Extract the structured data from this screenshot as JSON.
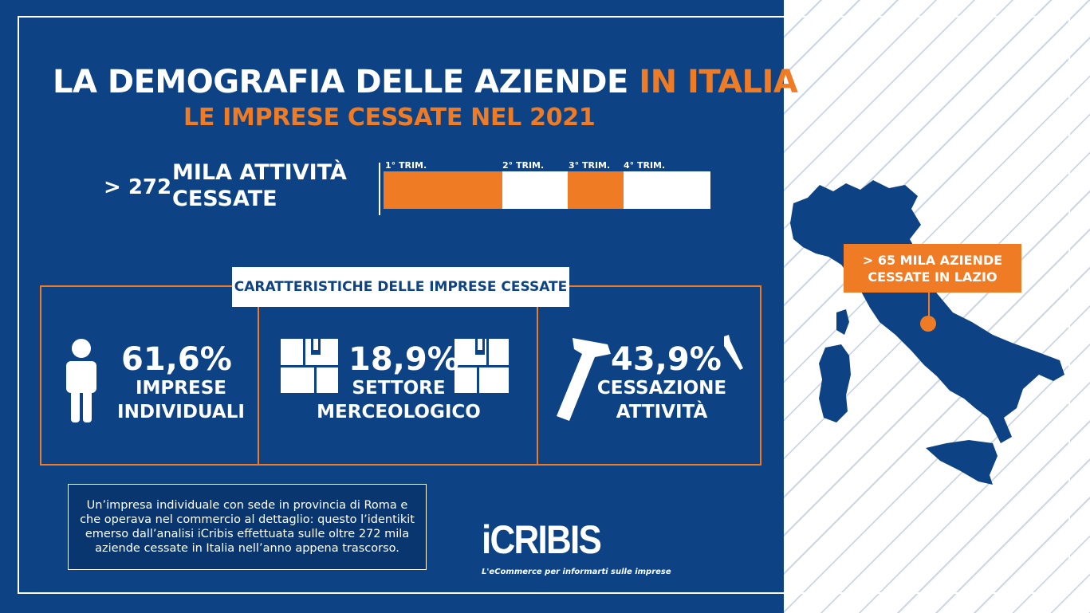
{
  "header": {
    "title_main": "LA DEMOGRAFIA DELLE AZIENDE",
    "title_highlight": "IN ITALIA",
    "subtitle": "LE IMPRESE CESSATE NEL 2021"
  },
  "summary": {
    "prefix": "> 272",
    "text": "MILA ATTIVITÀ CESSATE"
  },
  "quarters": [
    {
      "label": "1° TRIM.",
      "color": "#f07b25"
    },
    {
      "label": "2° TRIM.",
      "color": "#ffffff"
    },
    {
      "label": "3° TRIM.",
      "color": "#f07b25"
    },
    {
      "label": "4° TRIM.",
      "color": "#ffffff"
    }
  ],
  "characteristics": {
    "heading": "CARATTERISTICHE DELLE IMPRESE CESSATE",
    "items": [
      {
        "icon": "person-icon",
        "value": "61,6%",
        "line1": "IMPRESE",
        "line2": "INDIVIDUALI"
      },
      {
        "icon": "shelf-box-icon",
        "value": "18,9%",
        "line1": "SETTORE",
        "line2": "MERCEOLOGICO"
      },
      {
        "icon": "hammer-nail-icon",
        "value": "43,9%",
        "line1": "CESSAZIONE",
        "line2": "ATTIVITÀ"
      }
    ]
  },
  "note": "Un’impresa individuale con sede in provincia di Roma e che operava nel commercio al dettaglio: questo l’identikit emerso dall’analisi iCribis effettuata sulle oltre 272 mila aziende cessate in Italia nell’anno appena trascorso.",
  "logo": {
    "name": "iCRIBIS",
    "tagline": "L'eCommerce per informarti sulle imprese"
  },
  "map": {
    "callout": "> 65 MILA AZIENDE CESSATE IN LAZIO"
  },
  "colors": {
    "navy": "#0d4384",
    "orange": "#f07b25",
    "white": "#ffffff"
  }
}
